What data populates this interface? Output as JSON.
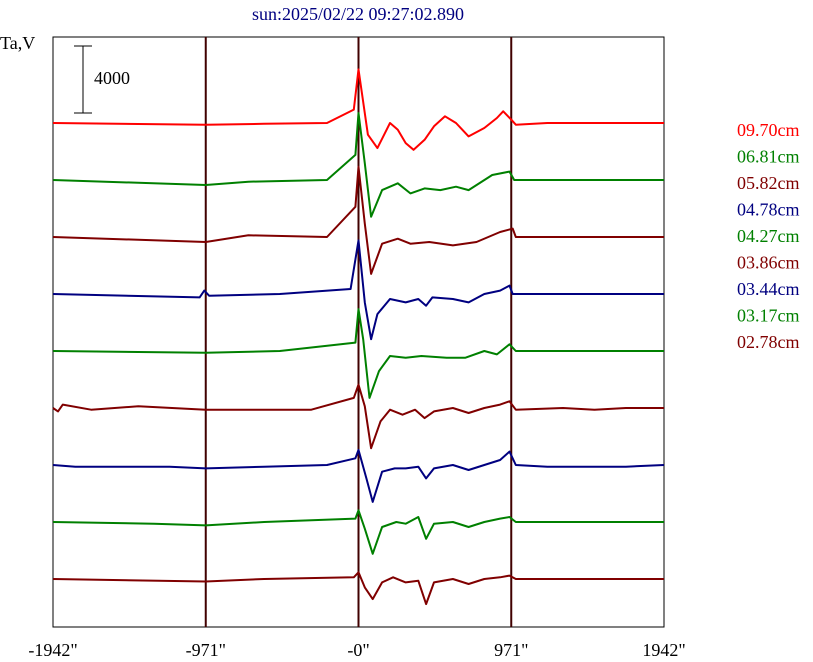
{
  "title": "sun:2025/02/22 09:27:02.890",
  "ylabel": "Ta,V",
  "scale_bar": {
    "label": "4000",
    "value": 4000
  },
  "chart_data": {
    "type": "line",
    "title": "sun:2025/02/22 09:27:02.890",
    "ylabel": "Ta,V",
    "xlim": [
      -1942,
      1942
    ],
    "x_ticks": [
      {
        "value": -1942,
        "label": "-1942\""
      },
      {
        "value": -971,
        "label": "-971\""
      },
      {
        "value": 0,
        "label": "-0\""
      },
      {
        "value": 971,
        "label": "971\""
      },
      {
        "value": 1942,
        "label": "1942\""
      }
    ],
    "vertical_lines": [
      -971,
      0,
      971
    ],
    "grid": false,
    "legend_position": "right",
    "series": [
      {
        "name": "09.70cm",
        "color": "#ff0000",
        "offset_index": 0,
        "peaks": [
          [
            -1942,
            0
          ],
          [
            -971,
            -100
          ],
          [
            -600,
            -50
          ],
          [
            -200,
            0
          ],
          [
            -30,
            800
          ],
          [
            0,
            3200
          ],
          [
            60,
            -700
          ],
          [
            120,
            -1500
          ],
          [
            200,
            0
          ],
          [
            250,
            -400
          ],
          [
            300,
            -1200
          ],
          [
            350,
            -1600
          ],
          [
            420,
            -1000
          ],
          [
            480,
            -200
          ],
          [
            550,
            400
          ],
          [
            620,
            0
          ],
          [
            700,
            -800
          ],
          [
            800,
            -300
          ],
          [
            880,
            300
          ],
          [
            920,
            700
          ],
          [
            971,
            200
          ],
          [
            1000,
            -100
          ],
          [
            1200,
            0
          ],
          [
            1942,
            0
          ]
        ]
      },
      {
        "name": "06.81cm",
        "color": "#008000",
        "offset_index": 1,
        "peaks": [
          [
            -1942,
            0
          ],
          [
            -971,
            -300
          ],
          [
            -700,
            -100
          ],
          [
            -200,
            0
          ],
          [
            -20,
            1500
          ],
          [
            0,
            4000
          ],
          [
            40,
            1000
          ],
          [
            80,
            -2200
          ],
          [
            150,
            -600
          ],
          [
            250,
            -200
          ],
          [
            330,
            -800
          ],
          [
            420,
            -500
          ],
          [
            520,
            -600
          ],
          [
            620,
            -400
          ],
          [
            700,
            -600
          ],
          [
            850,
            300
          ],
          [
            960,
            500
          ],
          [
            990,
            0
          ],
          [
            1942,
            0
          ]
        ]
      },
      {
        "name": "05.82cm",
        "color": "#800000",
        "offset_index": 2,
        "peaks": [
          [
            -1942,
            0
          ],
          [
            -971,
            -300
          ],
          [
            -700,
            100
          ],
          [
            -200,
            0
          ],
          [
            -20,
            1800
          ],
          [
            0,
            4200
          ],
          [
            40,
            800
          ],
          [
            80,
            -2200
          ],
          [
            150,
            -400
          ],
          [
            250,
            -100
          ],
          [
            330,
            -400
          ],
          [
            450,
            -300
          ],
          [
            600,
            -500
          ],
          [
            750,
            -300
          ],
          [
            900,
            300
          ],
          [
            980,
            500
          ],
          [
            1000,
            0
          ],
          [
            1942,
            0
          ]
        ]
      },
      {
        "name": "04.78cm",
        "color": "#000080",
        "offset_index": 3,
        "peaks": [
          [
            -1942,
            0
          ],
          [
            -1010,
            -200
          ],
          [
            -980,
            200
          ],
          [
            -950,
            -100
          ],
          [
            -500,
            0
          ],
          [
            -50,
            300
          ],
          [
            0,
            3200
          ],
          [
            40,
            -500
          ],
          [
            80,
            -2700
          ],
          [
            120,
            -1200
          ],
          [
            200,
            -300
          ],
          [
            300,
            -500
          ],
          [
            380,
            -300
          ],
          [
            430,
            -700
          ],
          [
            470,
            -200
          ],
          [
            600,
            -300
          ],
          [
            700,
            -500
          ],
          [
            800,
            0
          ],
          [
            900,
            200
          ],
          [
            960,
            500
          ],
          [
            980,
            0
          ],
          [
            1942,
            0
          ]
        ]
      },
      {
        "name": "04.27cm",
        "color": "#008000",
        "offset_index": 4,
        "peaks": [
          [
            -1942,
            0
          ],
          [
            -971,
            -100
          ],
          [
            -500,
            0
          ],
          [
            -20,
            500
          ],
          [
            0,
            2500
          ],
          [
            30,
            700
          ],
          [
            70,
            -2800
          ],
          [
            130,
            -1200
          ],
          [
            200,
            -300
          ],
          [
            300,
            -400
          ],
          [
            400,
            -300
          ],
          [
            560,
            -400
          ],
          [
            680,
            -400
          ],
          [
            800,
            0
          ],
          [
            880,
            -200
          ],
          [
            960,
            400
          ],
          [
            1000,
            0
          ],
          [
            1942,
            0
          ]
        ]
      },
      {
        "name": "03.86cm",
        "color": "#800000",
        "offset_index": 5,
        "peaks": [
          [
            -1942,
            0
          ],
          [
            -1910,
            -200
          ],
          [
            -1880,
            200
          ],
          [
            -1700,
            -100
          ],
          [
            -1400,
            100
          ],
          [
            -971,
            -100
          ],
          [
            -600,
            -100
          ],
          [
            -300,
            -100
          ],
          [
            -30,
            600
          ],
          [
            0,
            1400
          ],
          [
            40,
            100
          ],
          [
            80,
            -2400
          ],
          [
            140,
            -800
          ],
          [
            200,
            -100
          ],
          [
            280,
            -400
          ],
          [
            360,
            -100
          ],
          [
            420,
            -600
          ],
          [
            480,
            -200
          ],
          [
            600,
            0
          ],
          [
            700,
            -300
          ],
          [
            800,
            0
          ],
          [
            900,
            200
          ],
          [
            960,
            400
          ],
          [
            1000,
            -100
          ],
          [
            1300,
            0
          ],
          [
            1500,
            -100
          ],
          [
            1700,
            0
          ],
          [
            1942,
            0
          ]
        ]
      },
      {
        "name": "03.44cm",
        "color": "#000080",
        "offset_index": 6,
        "peaks": [
          [
            -1942,
            0
          ],
          [
            -1800,
            -100
          ],
          [
            -1200,
            -100
          ],
          [
            -971,
            -200
          ],
          [
            -600,
            -100
          ],
          [
            -200,
            0
          ],
          [
            -20,
            400
          ],
          [
            0,
            900
          ],
          [
            50,
            -800
          ],
          [
            90,
            -2200
          ],
          [
            150,
            -400
          ],
          [
            230,
            -200
          ],
          [
            300,
            -200
          ],
          [
            380,
            -100
          ],
          [
            430,
            -800
          ],
          [
            480,
            -200
          ],
          [
            600,
            0
          ],
          [
            700,
            -300
          ],
          [
            800,
            0
          ],
          [
            900,
            300
          ],
          [
            960,
            800
          ],
          [
            1000,
            0
          ],
          [
            1200,
            -100
          ],
          [
            1700,
            -100
          ],
          [
            1942,
            0
          ]
        ]
      },
      {
        "name": "03.17cm",
        "color": "#008000",
        "offset_index": 7,
        "peaks": [
          [
            -1942,
            0
          ],
          [
            -1300,
            -100
          ],
          [
            -971,
            -200
          ],
          [
            -600,
            0
          ],
          [
            -20,
            200
          ],
          [
            0,
            700
          ],
          [
            40,
            -400
          ],
          [
            90,
            -1900
          ],
          [
            150,
            -300
          ],
          [
            240,
            0
          ],
          [
            300,
            -100
          ],
          [
            380,
            300
          ],
          [
            430,
            -1000
          ],
          [
            480,
            -100
          ],
          [
            600,
            0
          ],
          [
            700,
            -300
          ],
          [
            800,
            0
          ],
          [
            900,
            200
          ],
          [
            960,
            300
          ],
          [
            1000,
            0
          ],
          [
            1942,
            0
          ]
        ]
      },
      {
        "name": "02.78cm",
        "color": "#800000",
        "offset_index": 8,
        "peaks": [
          [
            -1942,
            0
          ],
          [
            -971,
            -150
          ],
          [
            -600,
            0
          ],
          [
            -30,
            100
          ],
          [
            0,
            400
          ],
          [
            40,
            -500
          ],
          [
            90,
            -1200
          ],
          [
            150,
            -200
          ],
          [
            220,
            100
          ],
          [
            300,
            -200
          ],
          [
            380,
            -100
          ],
          [
            430,
            -1500
          ],
          [
            480,
            -200
          ],
          [
            600,
            0
          ],
          [
            700,
            -300
          ],
          [
            800,
            0
          ],
          [
            900,
            100
          ],
          [
            960,
            200
          ],
          [
            1000,
            0
          ],
          [
            1942,
            0
          ]
        ]
      }
    ]
  }
}
